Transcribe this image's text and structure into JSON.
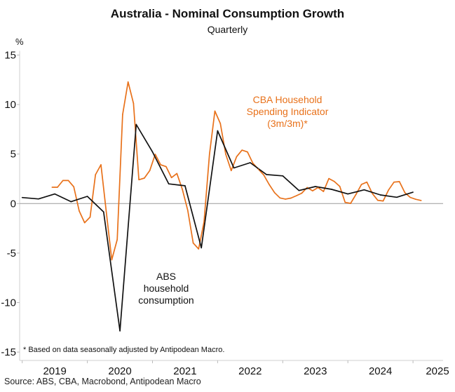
{
  "chart_data": {
    "type": "line",
    "title": "Australia - Nominal Consumption Growth",
    "subtitle": "Quarterly",
    "ylabel": "%",
    "ylim": [
      -15,
      15
    ],
    "yticks": [
      15,
      10,
      5,
      0,
      -5,
      -10,
      -15
    ],
    "xticks": [
      "2019",
      "2020",
      "2021",
      "2022",
      "2023",
      "2024",
      "2025"
    ],
    "grid": false,
    "footnote": "* Based on data seasonally adjusted by Antipodean Macro.",
    "source": "Source: ABS, CBA, Macrobond, Antipodean Macro",
    "colors": {
      "cba": "#e8711a",
      "abs": "#111111",
      "zero_line": "#9a9a9a"
    },
    "series": [
      {
        "name": "ABS household consumption",
        "label_lines": [
          "ABS",
          "household",
          "consumption"
        ],
        "frequency": "quarterly",
        "x": [
          "2018Q4",
          "2019Q1",
          "2019Q2",
          "2019Q3",
          "2019Q4",
          "2020Q1",
          "2020Q2",
          "2020Q3",
          "2020Q4",
          "2021Q1",
          "2021Q2",
          "2021Q3",
          "2021Q4",
          "2022Q1",
          "2022Q2",
          "2022Q3",
          "2022Q4",
          "2023Q1",
          "2023Q2",
          "2023Q3",
          "2023Q4",
          "2024Q1",
          "2024Q2",
          "2024Q3",
          "2024Q4"
        ],
        "values": [
          0.61,
          0.47,
          0.97,
          0.19,
          0.73,
          -0.85,
          -12.86,
          7.99,
          5.22,
          1.99,
          1.8,
          -4.47,
          7.35,
          3.6,
          4.13,
          2.93,
          2.8,
          1.32,
          1.72,
          1.44,
          0.97,
          1.39,
          0.87,
          0.64,
          1.15
        ]
      },
      {
        "name": "CBA Household Spending Indicator (3m/3m)*",
        "label_lines": [
          "CBA Household",
          "Spending Indicator",
          "(3m/3m)*"
        ],
        "frequency": "monthly",
        "start": "2019-06",
        "end": "2025-02",
        "values": [
          1.65,
          1.65,
          2.33,
          2.33,
          1.7,
          -0.75,
          -1.93,
          -1.37,
          2.92,
          3.92,
          -0.9,
          -5.68,
          -3.63,
          8.99,
          12.29,
          10.12,
          2.41,
          2.57,
          3.33,
          4.98,
          3.92,
          3.73,
          2.62,
          3.04,
          1.44,
          -0.68,
          -3.99,
          -4.58,
          -1.86,
          4.98,
          9.34,
          8.09,
          4.98,
          3.33,
          4.74,
          5.4,
          5.21,
          4.08,
          3.48,
          2.89,
          1.93,
          1.1,
          0.57,
          0.45,
          0.55,
          0.79,
          1.05,
          1.62,
          1.29,
          1.62,
          1.22,
          2.53,
          2.24,
          1.74,
          0.12,
          0.02,
          0.93,
          1.93,
          2.17,
          1.03,
          0.33,
          0.26,
          1.38,
          2.17,
          2.22,
          1.1,
          0.62,
          0.43,
          0.31
        ]
      }
    ]
  }
}
